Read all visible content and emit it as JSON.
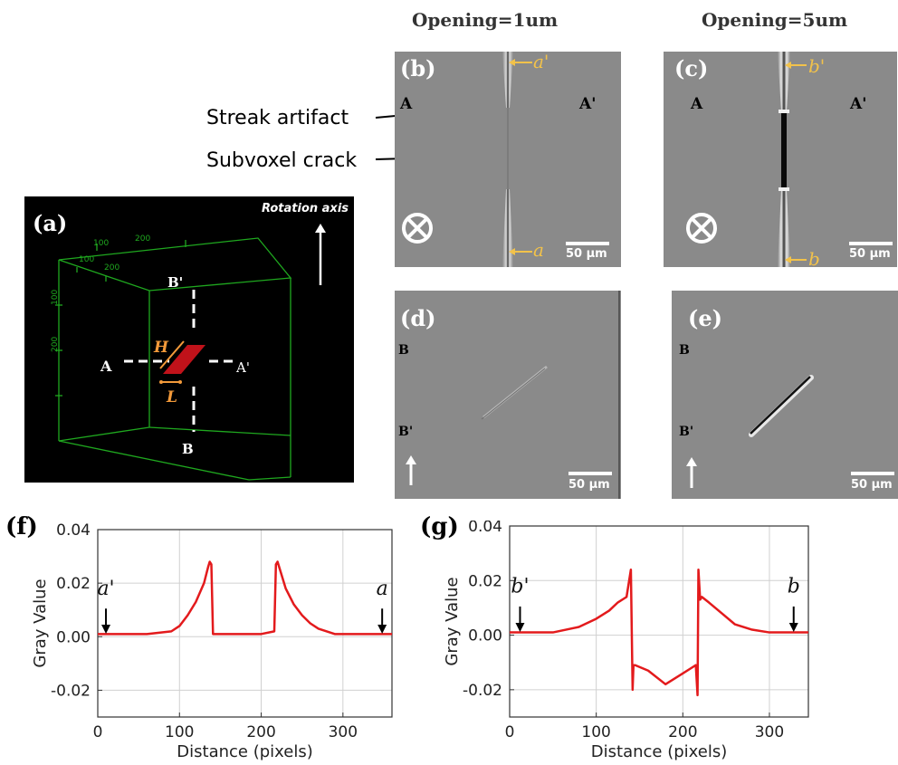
{
  "columns": {
    "left_title": "Opening=1um",
    "right_title": "Opening=5um"
  },
  "callouts": {
    "streak": "Streak artifact",
    "crack": "Subvoxel crack"
  },
  "panel_a": {
    "label": "(a)",
    "rotation_axis": "Rotation axis",
    "A": "A",
    "A_prime": "A'",
    "B": "B",
    "B_prime": "B'",
    "H": "H",
    "L": "L",
    "ticks_top": [
      "100",
      "200"
    ],
    "ticks_diag": [
      "100",
      "200"
    ],
    "ticks_left": [
      "100",
      "200"
    ]
  },
  "panel_b": {
    "label": "(b)",
    "top_marker": "a'",
    "bottom_marker": "a",
    "A": "A",
    "A_prime": "A'",
    "scale": "50 μm"
  },
  "panel_c": {
    "label": "(c)",
    "top_marker": "b'",
    "bottom_marker": "b",
    "A": "A",
    "A_prime": "A'",
    "scale": "50 μm"
  },
  "panel_d": {
    "label": "(d)",
    "B": "B",
    "B_prime": "B'",
    "scale": "50 μm"
  },
  "panel_e": {
    "label": "(e)",
    "B": "B",
    "B_prime": "B'",
    "scale": "50 μm"
  },
  "chart_data": [
    {
      "type": "line",
      "label": "(f)",
      "xlabel": "Distance (pixels)",
      "ylabel": "Gray Value",
      "xlim": [
        0,
        360
      ],
      "ylim": [
        -0.03,
        0.04
      ],
      "xticks": [
        "0",
        "100",
        "200",
        "300"
      ],
      "yticks": [
        "0.04",
        "0.02",
        "0.00",
        "-0.02"
      ],
      "grid": true,
      "markers": [
        {
          "text": "a'",
          "x": 10
        },
        {
          "text": "a",
          "x": 348
        }
      ],
      "x": [
        0,
        60,
        90,
        100,
        110,
        120,
        130,
        135,
        137,
        139,
        141,
        150,
        200,
        216,
        218,
        220,
        222,
        230,
        240,
        250,
        260,
        270,
        290,
        360
      ],
      "y": [
        0.001,
        0.001,
        0.002,
        0.004,
        0.008,
        0.013,
        0.02,
        0.026,
        0.028,
        0.027,
        0.001,
        0.001,
        0.001,
        0.002,
        0.027,
        0.028,
        0.026,
        0.018,
        0.012,
        0.008,
        0.005,
        0.003,
        0.001,
        0.001
      ],
      "color": "#e31a1c"
    },
    {
      "type": "line",
      "label": "(g)",
      "xlabel": "Distance (pixels)",
      "ylabel": "Gray Value",
      "xlim": [
        0,
        345
      ],
      "ylim": [
        -0.03,
        0.04
      ],
      "xticks": [
        "0",
        "100",
        "200",
        "300"
      ],
      "yticks": [
        "0.04",
        "0.02",
        "0.00",
        "-0.02"
      ],
      "grid": true,
      "markers": [
        {
          "text": "b'",
          "x": 12
        },
        {
          "text": "b",
          "x": 328
        }
      ],
      "x": [
        0,
        50,
        80,
        100,
        115,
        125,
        135,
        140,
        142,
        143,
        145,
        160,
        180,
        200,
        215,
        217,
        218,
        220,
        222,
        230,
        245,
        260,
        280,
        300,
        345
      ],
      "y": [
        0.001,
        0.001,
        0.003,
        0.006,
        0.009,
        0.012,
        0.014,
        0.024,
        -0.02,
        -0.011,
        -0.011,
        -0.013,
        -0.018,
        -0.014,
        -0.011,
        -0.022,
        0.024,
        0.013,
        0.014,
        0.012,
        0.008,
        0.004,
        0.002,
        0.001,
        0.001
      ],
      "color": "#e31a1c"
    }
  ]
}
